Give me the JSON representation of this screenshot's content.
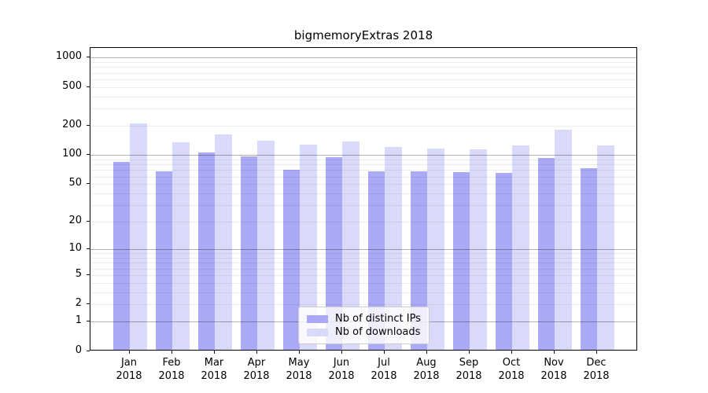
{
  "title": "bigmemoryExtras 2018",
  "chart_data": {
    "type": "bar",
    "title": "bigmemoryExtras 2018",
    "categories": [
      "Jan",
      "Feb",
      "Mar",
      "Apr",
      "May",
      "Jun",
      "Jul",
      "Aug",
      "Sep",
      "Oct",
      "Nov",
      "Dec"
    ],
    "x_year_label": "2018",
    "series": [
      {
        "name": "Nb of distinct IPs",
        "color": "#a9a9f5",
        "values": [
          85,
          68,
          107,
          97,
          70,
          95,
          68,
          68,
          66,
          65,
          93,
          73
        ]
      },
      {
        "name": "Nb of downloads",
        "color": "#d9d9fa",
        "values": [
          210,
          135,
          162,
          141,
          127,
          139,
          120,
          117,
          115,
          125,
          183,
          126
        ]
      }
    ],
    "xlabel": "",
    "ylabel": "",
    "y_scale": "log1p",
    "y_ticks": [
      0,
      1,
      2,
      5,
      10,
      20,
      50,
      100,
      200,
      500,
      1000
    ],
    "ylim": [
      0,
      1320
    ],
    "grid": "horizontal",
    "grid_major_at": [
      1,
      10,
      100,
      1000
    ],
    "legend_position": "inside-bottom-center"
  },
  "legend": {
    "entries": [
      "Nb of distinct IPs",
      "Nb of downloads"
    ]
  }
}
